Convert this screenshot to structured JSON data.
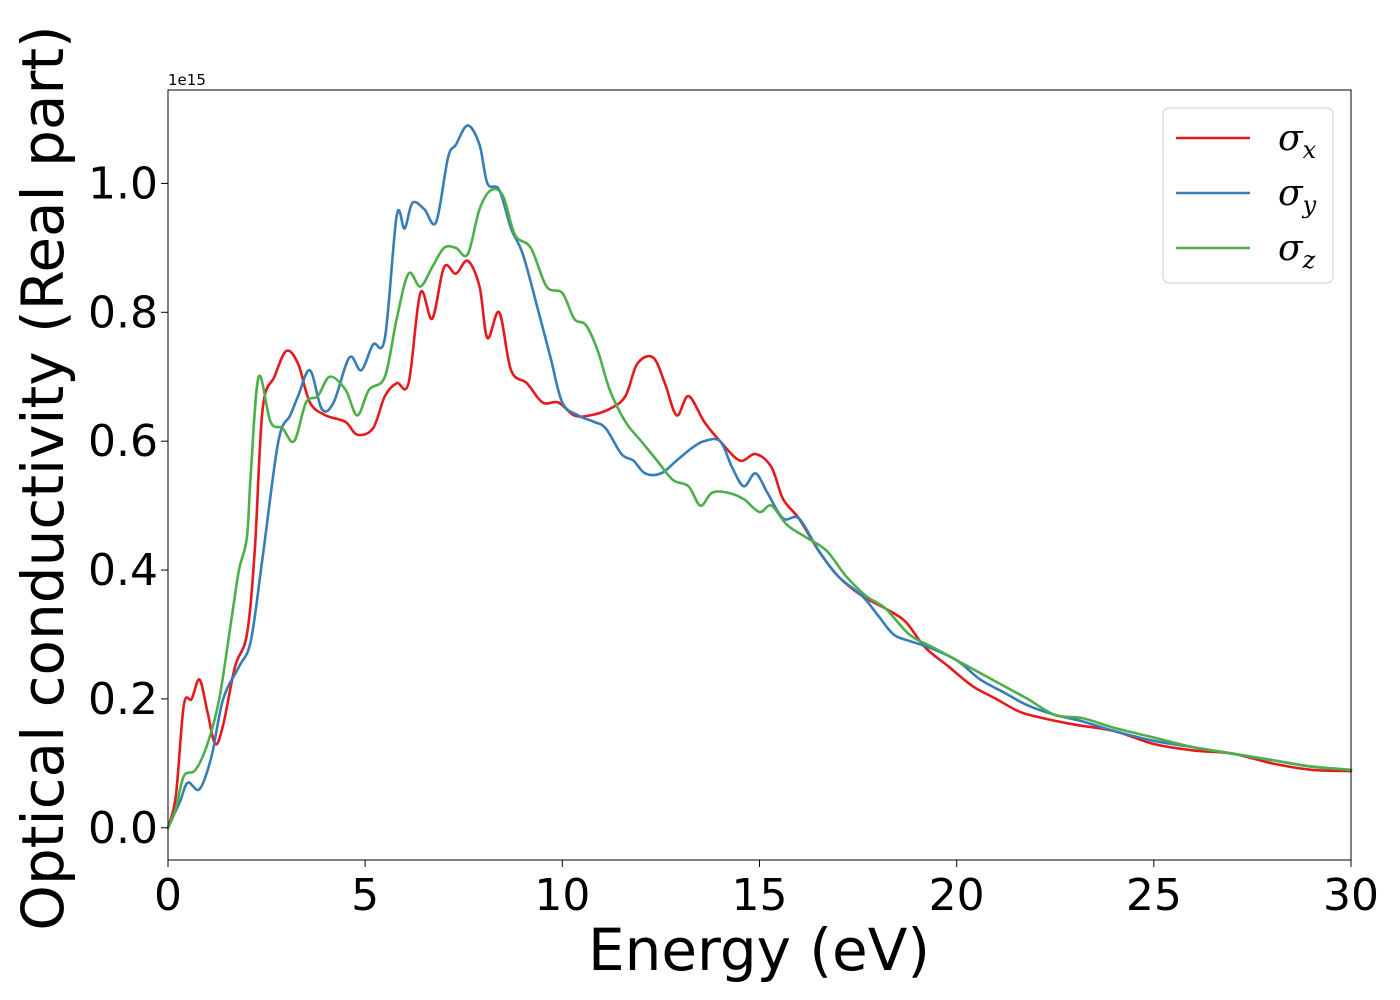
{
  "chart_data": {
    "type": "line",
    "title": "",
    "xlabel": "Energy (eV)",
    "ylabel": "Optical conductivity (Real part)",
    "y_offset_label": "1e15",
    "xlim": [
      0,
      30
    ],
    "ylim": [
      -0.05,
      1.145
    ],
    "xticks": [
      0,
      5,
      10,
      15,
      20,
      25,
      30
    ],
    "yticks": [
      0.0,
      0.2,
      0.4,
      0.6,
      0.8,
      1.0
    ],
    "xtick_labels": [
      "0",
      "5",
      "10",
      "15",
      "20",
      "25",
      "30"
    ],
    "ytick_labels": [
      "0.0",
      "0.2",
      "0.4",
      "0.6",
      "0.8",
      "1.0"
    ],
    "grid": false,
    "legend_position": "top-right",
    "series": [
      {
        "name": "σx",
        "symbol": "σ",
        "subscript": "x",
        "color": "#e41a1c",
        "points": [
          [
            0,
            0
          ],
          [
            0.2,
            0.05
          ],
          [
            0.4,
            0.19
          ],
          [
            0.6,
            0.2
          ],
          [
            0.8,
            0.23
          ],
          [
            1.0,
            0.18
          ],
          [
            1.2,
            0.13
          ],
          [
            1.4,
            0.16
          ],
          [
            1.7,
            0.25
          ],
          [
            2.0,
            0.3
          ],
          [
            2.2,
            0.43
          ],
          [
            2.4,
            0.65
          ],
          [
            2.7,
            0.7
          ],
          [
            3.0,
            0.74
          ],
          [
            3.3,
            0.72
          ],
          [
            3.6,
            0.66
          ],
          [
            4.0,
            0.64
          ],
          [
            4.5,
            0.63
          ],
          [
            4.8,
            0.61
          ],
          [
            5.2,
            0.62
          ],
          [
            5.5,
            0.67
          ],
          [
            5.8,
            0.69
          ],
          [
            6.1,
            0.69
          ],
          [
            6.4,
            0.83
          ],
          [
            6.7,
            0.79
          ],
          [
            7.0,
            0.87
          ],
          [
            7.3,
            0.86
          ],
          [
            7.6,
            0.88
          ],
          [
            7.9,
            0.84
          ],
          [
            8.1,
            0.76
          ],
          [
            8.4,
            0.8
          ],
          [
            8.7,
            0.71
          ],
          [
            9.1,
            0.69
          ],
          [
            9.5,
            0.66
          ],
          [
            9.9,
            0.66
          ],
          [
            10.3,
            0.64
          ],
          [
            10.7,
            0.64
          ],
          [
            11.2,
            0.65
          ],
          [
            11.6,
            0.67
          ],
          [
            11.9,
            0.72
          ],
          [
            12.3,
            0.73
          ],
          [
            12.6,
            0.69
          ],
          [
            12.9,
            0.64
          ],
          [
            13.2,
            0.67
          ],
          [
            13.6,
            0.63
          ],
          [
            14.0,
            0.6
          ],
          [
            14.5,
            0.57
          ],
          [
            14.9,
            0.58
          ],
          [
            15.3,
            0.56
          ],
          [
            15.6,
            0.51
          ],
          [
            16.0,
            0.48
          ],
          [
            16.5,
            0.43
          ],
          [
            17.0,
            0.39
          ],
          [
            17.6,
            0.36
          ],
          [
            18.2,
            0.34
          ],
          [
            18.7,
            0.32
          ],
          [
            19.2,
            0.28
          ],
          [
            19.8,
            0.25
          ],
          [
            20.4,
            0.22
          ],
          [
            21.0,
            0.2
          ],
          [
            21.6,
            0.18
          ],
          [
            22.2,
            0.17
          ],
          [
            23.0,
            0.16
          ],
          [
            24.0,
            0.15
          ],
          [
            25.0,
            0.13
          ],
          [
            26.0,
            0.12
          ],
          [
            27.0,
            0.115
          ],
          [
            28.0,
            0.1
          ],
          [
            29.0,
            0.09
          ],
          [
            30.0,
            0.088
          ]
        ]
      },
      {
        "name": "σy",
        "symbol": "σ",
        "subscript": "y",
        "color": "#377eb8",
        "points": [
          [
            0,
            0
          ],
          [
            0.3,
            0.04
          ],
          [
            0.5,
            0.07
          ],
          [
            0.8,
            0.06
          ],
          [
            1.1,
            0.11
          ],
          [
            1.4,
            0.2
          ],
          [
            1.8,
            0.25
          ],
          [
            2.1,
            0.29
          ],
          [
            2.4,
            0.42
          ],
          [
            2.8,
            0.6
          ],
          [
            3.1,
            0.64
          ],
          [
            3.3,
            0.67
          ],
          [
            3.6,
            0.71
          ],
          [
            3.9,
            0.65
          ],
          [
            4.2,
            0.66
          ],
          [
            4.6,
            0.73
          ],
          [
            4.9,
            0.71
          ],
          [
            5.2,
            0.75
          ],
          [
            5.5,
            0.76
          ],
          [
            5.8,
            0.95
          ],
          [
            6.0,
            0.93
          ],
          [
            6.2,
            0.97
          ],
          [
            6.5,
            0.96
          ],
          [
            6.8,
            0.94
          ],
          [
            7.1,
            1.04
          ],
          [
            7.3,
            1.06
          ],
          [
            7.6,
            1.09
          ],
          [
            7.9,
            1.06
          ],
          [
            8.1,
            1.0
          ],
          [
            8.4,
            0.99
          ],
          [
            8.7,
            0.93
          ],
          [
            9.0,
            0.89
          ],
          [
            9.4,
            0.8
          ],
          [
            9.7,
            0.73
          ],
          [
            10.0,
            0.66
          ],
          [
            10.4,
            0.64
          ],
          [
            10.8,
            0.63
          ],
          [
            11.1,
            0.62
          ],
          [
            11.5,
            0.58
          ],
          [
            11.8,
            0.57
          ],
          [
            12.1,
            0.55
          ],
          [
            12.5,
            0.55
          ],
          [
            12.9,
            0.57
          ],
          [
            13.3,
            0.59
          ],
          [
            13.6,
            0.6
          ],
          [
            14.0,
            0.6
          ],
          [
            14.3,
            0.56
          ],
          [
            14.6,
            0.53
          ],
          [
            14.9,
            0.55
          ],
          [
            15.2,
            0.52
          ],
          [
            15.6,
            0.48
          ],
          [
            16.0,
            0.48
          ],
          [
            16.5,
            0.43
          ],
          [
            17.0,
            0.39
          ],
          [
            17.6,
            0.36
          ],
          [
            18.0,
            0.33
          ],
          [
            18.4,
            0.3
          ],
          [
            18.8,
            0.29
          ],
          [
            19.3,
            0.28
          ],
          [
            20.0,
            0.26
          ],
          [
            20.6,
            0.23
          ],
          [
            21.2,
            0.21
          ],
          [
            21.8,
            0.19
          ],
          [
            22.5,
            0.175
          ],
          [
            23.2,
            0.165
          ],
          [
            24.0,
            0.15
          ],
          [
            25.0,
            0.135
          ],
          [
            26.0,
            0.125
          ],
          [
            27.0,
            0.115
          ],
          [
            28.0,
            0.105
          ],
          [
            29.0,
            0.095
          ],
          [
            30.0,
            0.09
          ]
        ]
      },
      {
        "name": "σz",
        "symbol": "σ",
        "subscript": "z",
        "color": "#4daf4a",
        "points": [
          [
            0,
            0
          ],
          [
            0.2,
            0.03
          ],
          [
            0.4,
            0.08
          ],
          [
            0.7,
            0.09
          ],
          [
            1.0,
            0.13
          ],
          [
            1.3,
            0.2
          ],
          [
            1.6,
            0.32
          ],
          [
            1.8,
            0.4
          ],
          [
            2.0,
            0.45
          ],
          [
            2.1,
            0.55
          ],
          [
            2.3,
            0.7
          ],
          [
            2.6,
            0.63
          ],
          [
            2.9,
            0.62
          ],
          [
            3.2,
            0.6
          ],
          [
            3.5,
            0.66
          ],
          [
            3.8,
            0.67
          ],
          [
            4.1,
            0.7
          ],
          [
            4.5,
            0.68
          ],
          [
            4.8,
            0.64
          ],
          [
            5.1,
            0.68
          ],
          [
            5.5,
            0.7
          ],
          [
            5.8,
            0.79
          ],
          [
            6.1,
            0.86
          ],
          [
            6.4,
            0.84
          ],
          [
            6.7,
            0.87
          ],
          [
            7.0,
            0.9
          ],
          [
            7.3,
            0.9
          ],
          [
            7.6,
            0.89
          ],
          [
            7.9,
            0.96
          ],
          [
            8.2,
            0.99
          ],
          [
            8.5,
            0.98
          ],
          [
            8.8,
            0.92
          ],
          [
            9.2,
            0.9
          ],
          [
            9.6,
            0.84
          ],
          [
            10.0,
            0.83
          ],
          [
            10.3,
            0.79
          ],
          [
            10.6,
            0.78
          ],
          [
            10.9,
            0.74
          ],
          [
            11.2,
            0.68
          ],
          [
            11.6,
            0.63
          ],
          [
            12.0,
            0.6
          ],
          [
            12.4,
            0.57
          ],
          [
            12.8,
            0.54
          ],
          [
            13.2,
            0.53
          ],
          [
            13.5,
            0.5
          ],
          [
            13.8,
            0.52
          ],
          [
            14.2,
            0.52
          ],
          [
            14.6,
            0.51
          ],
          [
            15.0,
            0.49
          ],
          [
            15.3,
            0.5
          ],
          [
            15.7,
            0.47
          ],
          [
            16.2,
            0.45
          ],
          [
            16.7,
            0.43
          ],
          [
            17.2,
            0.39
          ],
          [
            17.7,
            0.36
          ],
          [
            18.2,
            0.34
          ],
          [
            18.8,
            0.3
          ],
          [
            19.4,
            0.28
          ],
          [
            20.0,
            0.26
          ],
          [
            20.6,
            0.24
          ],
          [
            21.2,
            0.22
          ],
          [
            21.8,
            0.2
          ],
          [
            22.5,
            0.175
          ],
          [
            23.2,
            0.17
          ],
          [
            24.0,
            0.155
          ],
          [
            25.0,
            0.14
          ],
          [
            26.0,
            0.125
          ],
          [
            27.0,
            0.115
          ],
          [
            28.0,
            0.105
          ],
          [
            29.0,
            0.095
          ],
          [
            30.0,
            0.09
          ]
        ]
      }
    ]
  }
}
